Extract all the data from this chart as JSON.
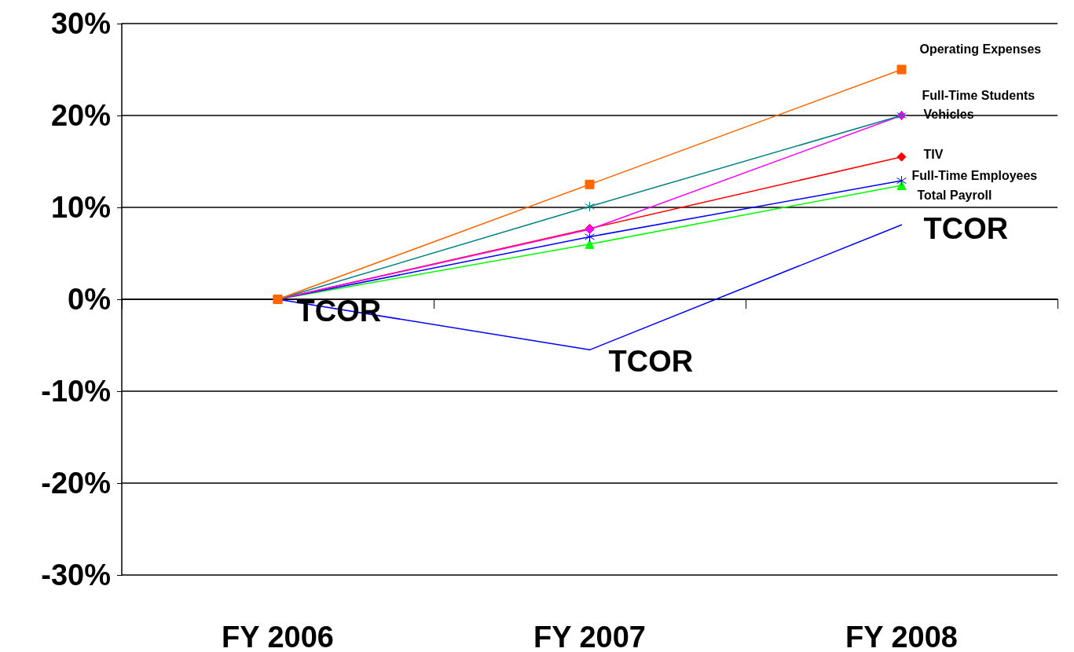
{
  "chart_data": {
    "type": "line",
    "categories": [
      "FY 2006",
      "FY 2007",
      "FY 2008"
    ],
    "series": [
      {
        "name": "Operating Expenses",
        "color": "#ff6600",
        "marker": "square",
        "values": [
          0,
          12.5,
          25
        ]
      },
      {
        "name": "Full-Time Students",
        "color": "#008080",
        "marker": "cross",
        "values": [
          0,
          10.1,
          20
        ]
      },
      {
        "name": "Vehicles",
        "color": "#ff00ff",
        "marker": "diamond",
        "values": [
          0,
          7.6,
          20
        ]
      },
      {
        "name": "TIV",
        "color": "#ff0000",
        "marker": "diamond",
        "values": [
          0,
          7.7,
          15.5
        ]
      },
      {
        "name": "Full-Time Employees",
        "color": "#0000ff",
        "marker": "cross",
        "values": [
          0,
          6.8,
          12.9
        ]
      },
      {
        "name": "Total Payroll",
        "color": "#00ff00",
        "marker": "triangle",
        "values": [
          0,
          6.0,
          12.4
        ]
      },
      {
        "name": "TCOR",
        "color": "#0000ff",
        "marker": "none",
        "values": [
          0,
          -5.5,
          8.1
        ]
      }
    ],
    "annotations": [
      {
        "text": "TCOR",
        "x": "FY 2006",
        "y": 0
      },
      {
        "text": "TCOR",
        "x": "FY 2007",
        "y": -5.5
      }
    ],
    "ylim": [
      -30,
      30
    ],
    "yticks": [
      {
        "value": -30,
        "label": "-30%"
      },
      {
        "value": -20,
        "label": "-20%"
      },
      {
        "value": -10,
        "label": "-10%"
      },
      {
        "value": 0,
        "label": "0%"
      },
      {
        "value": 10,
        "label": "10%"
      },
      {
        "value": 20,
        "label": "20%"
      },
      {
        "value": 30,
        "label": "30%"
      }
    ],
    "grid": "y",
    "legend": false
  }
}
